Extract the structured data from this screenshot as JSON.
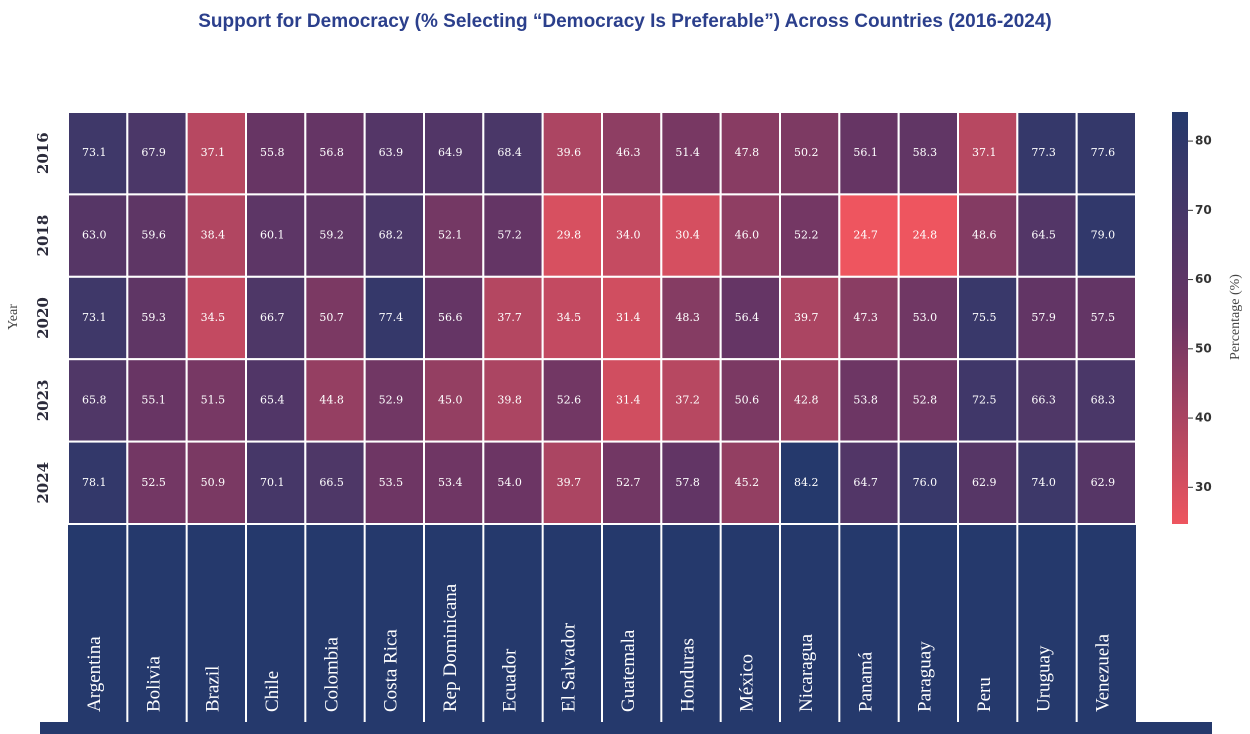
{
  "chart_data": {
    "type": "heatmap",
    "title": "Support for Democracy (% Selecting “Democracy Is Preferable”) Across Countries (2016-2024)",
    "ylabel": "Year",
    "colorbar_label": "Percentage (%)",
    "categories": [
      "Argentina",
      "Bolivia",
      "Brazil",
      "Chile",
      "Colombia",
      "Costa Rica",
      "Rep Dominicana",
      "Ecuador",
      "El Salvador",
      "Guatemala",
      "Honduras",
      "México",
      "Nicaragua",
      "Panamá",
      "Paraguay",
      "Peru",
      "Uruguay",
      "Venezuela"
    ],
    "rows": [
      "2016",
      "2018",
      "2020",
      "2023",
      "2024"
    ],
    "values": [
      [
        73.1,
        67.9,
        37.1,
        55.8,
        56.8,
        63.9,
        64.9,
        68.4,
        39.6,
        46.3,
        51.4,
        47.8,
        50.2,
        56.1,
        58.3,
        37.1,
        77.3,
        77.6
      ],
      [
        63.0,
        59.6,
        38.4,
        60.1,
        59.2,
        68.2,
        52.1,
        57.2,
        29.8,
        34.0,
        30.4,
        46.0,
        52.2,
        24.7,
        24.8,
        48.6,
        64.5,
        79.0
      ],
      [
        73.1,
        59.3,
        34.5,
        66.7,
        50.7,
        77.4,
        56.6,
        37.7,
        34.5,
        31.4,
        48.3,
        56.4,
        39.7,
        47.3,
        53.0,
        75.5,
        57.9,
        57.5
      ],
      [
        65.8,
        55.1,
        51.5,
        65.4,
        44.8,
        52.9,
        45.0,
        39.8,
        52.6,
        31.4,
        37.2,
        50.6,
        42.8,
        53.8,
        52.8,
        72.5,
        66.3,
        68.3
      ],
      [
        78.1,
        52.5,
        50.9,
        70.1,
        66.5,
        53.5,
        53.4,
        54.0,
        39.7,
        52.7,
        57.8,
        45.2,
        84.2,
        64.7,
        76.0,
        62.9,
        74.0,
        62.9
      ]
    ],
    "value_labels": [
      [
        "73.1",
        "67.9",
        "37.1",
        "55.8",
        "56.8",
        "63.9",
        "64.9",
        "68.4",
        "39.6",
        "46.3",
        "51.4",
        "47.8",
        "50.2",
        "56.1",
        "58.3",
        "37.1",
        "77.3",
        "77.6"
      ],
      [
        "63.0",
        "59.6",
        "38.4",
        "60.1",
        "59.2",
        "68.2",
        "52.1",
        "57.2",
        "29.8",
        "34.0",
        "30.4",
        "46.0",
        "52.2",
        "24.7",
        "24.8",
        "48.6",
        "64.5",
        "79.0"
      ],
      [
        "73.1",
        "59.3",
        "34.5",
        "66.7",
        "50.7",
        "77.4",
        "56.6",
        "37.7",
        "34.5",
        "31.4",
        "48.3",
        "56.4",
        "39.7",
        "47.3",
        "53.0",
        "75.5",
        "57.9",
        "57.5"
      ],
      [
        "65.8",
        "55.1",
        "51.5",
        "65.4",
        "44.8",
        "52.9",
        "45.0",
        "39.8",
        "52.6",
        "31.4",
        "37.2",
        "50.6",
        "42.8",
        "53.8",
        "52.8",
        "72.5",
        "66.3",
        "68.3"
      ],
      [
        "78.1",
        "52.5",
        "50.9",
        "70.1",
        "66.5",
        "53.5",
        "53.4",
        "54.0",
        "39.7",
        "52.7",
        "57.8",
        "45.2",
        "84.2",
        "64.7",
        "76.0",
        "62.9",
        "74.0",
        "62.9"
      ]
    ],
    "zlim": [
      24.7,
      84.2
    ],
    "zticks": [
      30,
      40,
      50,
      60,
      70,
      80
    ],
    "colorscale": [
      "#ee555f",
      "#6a3564",
      "#25396c"
    ]
  }
}
